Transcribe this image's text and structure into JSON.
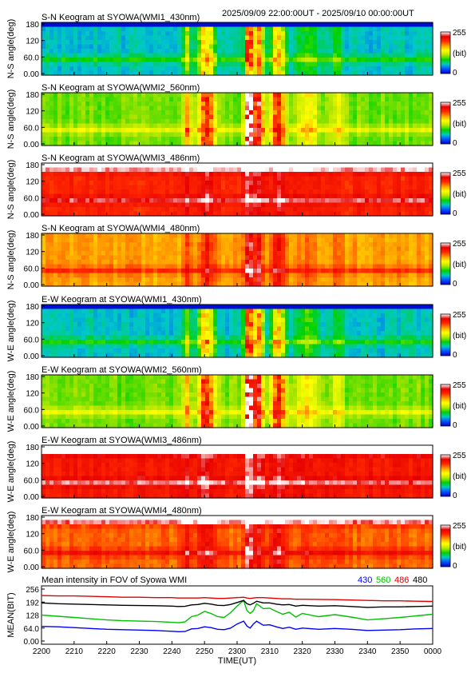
{
  "header": {
    "time_range": "2025/09/09 22:00:00UT - 2025/09/10 00:00:00UT"
  },
  "colors": {
    "colormap": [
      "#0000c8",
      "#0050ff",
      "#00c8c8",
      "#00d200",
      "#b4e600",
      "#ffff00",
      "#ffa000",
      "#ff2800",
      "#e60000",
      "#ffffff"
    ],
    "series_430": "#0000ff",
    "series_560": "#00c000",
    "series_486": "#e00000",
    "series_480": "#000000"
  },
  "colorbar": {
    "max_label": "255",
    "unit_label": "(bit)",
    "min_label": "0"
  },
  "keograms": [
    {
      "title": "S-N Keogram at SYOWA(WMI1_430nm)",
      "ylabel": "N-S angle(deg)",
      "base_level": 0.22,
      "event_gain": 0.9,
      "white_top": 0
    },
    {
      "title": "S-N Keogram at SYOWA(WMI2_560nm)",
      "ylabel": "N-S angle(deg)",
      "base_level": 0.4,
      "event_gain": 1.0,
      "white_top": 0
    },
    {
      "title": "S-N Keogram at SYOWA(WMI3_486nm)",
      "ylabel": "N-S angle(deg)",
      "base_level": 0.8,
      "event_gain": 0.2,
      "white_top": 0.3
    },
    {
      "title": "S-N Keogram at SYOWA(WMI4_480nm)",
      "ylabel": "N-S angle(deg)",
      "base_level": 0.66,
      "event_gain": 0.4,
      "white_top": 0
    },
    {
      "title": "E-W Keogram at SYOWA(WMI1_430nm)",
      "ylabel": "W-E angle(deg)",
      "base_level": 0.22,
      "event_gain": 0.9,
      "white_top": 0
    },
    {
      "title": "E-W Keogram at SYOWA(WMI2_560nm)",
      "ylabel": "W-E angle(deg)",
      "base_level": 0.4,
      "event_gain": 1.0,
      "white_top": 0
    },
    {
      "title": "E-W Keogram at SYOWA(WMI3_486nm)",
      "ylabel": "W-E angle(deg)",
      "base_level": 0.82,
      "event_gain": 0.2,
      "white_top": 0.5
    },
    {
      "title": "E-W Keogram at SYOWA(WMI4_480nm)",
      "ylabel": "W-E angle(deg)",
      "base_level": 0.72,
      "event_gain": 0.35,
      "white_top": 0.4
    }
  ],
  "chart_data": {
    "type": "line",
    "title": "Mean intensity in FOV of Syowa WMI",
    "xlabel": "TIME(UT)",
    "ylabel": "MEAN(BIT)",
    "ylim": [
      0,
      256
    ],
    "yticks": [
      "256",
      "192",
      "128",
      "64.0",
      "0.00"
    ],
    "keogram_yticks": [
      "180",
      "120",
      "60.0",
      "0.00"
    ],
    "xticks": [
      "2200",
      "2210",
      "2220",
      "2230",
      "2240",
      "2250",
      "2300",
      "2310",
      "2320",
      "2330",
      "2340",
      "2350",
      "0000"
    ],
    "x": [
      0,
      5,
      10,
      15,
      20,
      25,
      30,
      35,
      40,
      42,
      44,
      46,
      48,
      50,
      52,
      54,
      56,
      58,
      60,
      62,
      63,
      64,
      65,
      66,
      68,
      70,
      72,
      74,
      76,
      78,
      80,
      85,
      90,
      95,
      100,
      105,
      110,
      115,
      120
    ],
    "series": [
      {
        "name": "430",
        "values": [
          72,
          70,
          66,
          62,
          58,
          56,
          54,
          52,
          48,
          46,
          47,
          60,
          62,
          70,
          66,
          58,
          56,
          64,
          84,
          98,
          74,
          64,
          84,
          98,
          78,
          80,
          70,
          62,
          68,
          58,
          64,
          58,
          62,
          58,
          52,
          54,
          56,
          60,
          62
        ]
      },
      {
        "name": "560",
        "values": [
          128,
          122,
          116,
          110,
          104,
          100,
          98,
          96,
          92,
          90,
          94,
          120,
          128,
          146,
          136,
          120,
          116,
          140,
          172,
          200,
          150,
          136,
          150,
          184,
          160,
          162,
          146,
          132,
          142,
          118,
          136,
          120,
          130,
          118,
          104,
          110,
          116,
          124,
          132
        ]
      },
      {
        "name": "486",
        "values": [
          224,
          222,
          222,
          220,
          218,
          216,
          216,
          214,
          214,
          212,
          212,
          212,
          212,
          214,
          212,
          210,
          210,
          212,
          214,
          216,
          212,
          210,
          212,
          214,
          214,
          212,
          210,
          208,
          208,
          206,
          206,
          205,
          204,
          202,
          200,
          198,
          198,
          196,
          195
        ]
      },
      {
        "name": "480",
        "values": [
          188,
          184,
          182,
          180,
          178,
          176,
          175,
          174,
          172,
          170,
          171,
          178,
          180,
          186,
          182,
          176,
          175,
          180,
          190,
          200,
          184,
          178,
          186,
          196,
          188,
          188,
          182,
          178,
          180,
          172,
          176,
          172,
          174,
          170,
          166,
          168,
          168,
          170,
          172
        ]
      }
    ]
  }
}
